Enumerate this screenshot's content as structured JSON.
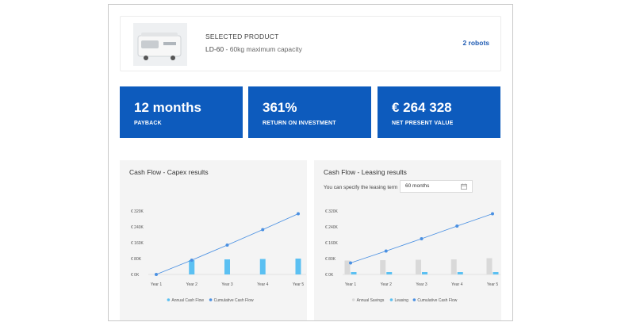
{
  "product": {
    "heading": "SELECTED PRODUCT",
    "model": "LD-60",
    "separator": " - ",
    "description": "60kg maximum capacity",
    "count_label": "2 robots",
    "image_icon": "robot-image"
  },
  "kpis": [
    {
      "value": "12 months",
      "label": "PAYBACK"
    },
    {
      "value": "361%",
      "label": "RETURN ON INVESTMENT"
    },
    {
      "value": "€ 264 328",
      "label": "NET PRESENT VALUE"
    }
  ],
  "colors": {
    "accent": "#0d5bbd",
    "line": "#4a90e2",
    "annual_bar": "#5bc0f2",
    "savings_bar": "#d9d9d9"
  },
  "capex": {
    "title": "Cash Flow - Capex results"
  },
  "leasing": {
    "title": "Cash Flow - Leasing results",
    "term_label": "You can specify the leasing term",
    "term_value": "60 months",
    "calendar_icon": "calendar-icon"
  },
  "chart_data": [
    {
      "type": "bar",
      "title": "Cash Flow - Capex results",
      "categories": [
        "Year 1",
        "Year 2",
        "Year 3",
        "Year 4",
        "Year 5"
      ],
      "y_tick_labels": [
        "€ 0K",
        "€ 80K",
        "€ 160K",
        "€ 240K",
        "€ 320K"
      ],
      "ylim": [
        0,
        320
      ],
      "grid": false,
      "legend_position": "bottom",
      "series": [
        {
          "name": "Annual Cash Flow",
          "kind": "bar",
          "values": [
            0,
            72,
            76,
            78,
            80
          ]
        },
        {
          "name": "Cumulative Cash Flow",
          "kind": "line",
          "values": [
            0,
            72,
            148,
            226,
            306
          ]
        }
      ]
    },
    {
      "type": "bar",
      "title": "Cash Flow - Leasing results",
      "categories": [
        "Year 1",
        "Year 2",
        "Year 3",
        "Year 4",
        "Year 5"
      ],
      "y_tick_labels": [
        "€ 0K",
        "€ 80K",
        "€ 160K",
        "€ 240K",
        "€ 320K"
      ],
      "ylim": [
        0,
        320
      ],
      "grid": false,
      "legend_position": "bottom",
      "series": [
        {
          "name": "Annual Savings",
          "kind": "bar",
          "values": [
            70,
            72,
            74,
            76,
            82
          ]
        },
        {
          "name": "Leasing",
          "kind": "bar",
          "values": [
            12,
            12,
            12,
            12,
            12
          ]
        },
        {
          "name": "Cumulative Cash Flow",
          "kind": "line",
          "values": [
            58,
            118,
            180,
            244,
            306
          ]
        }
      ]
    }
  ]
}
